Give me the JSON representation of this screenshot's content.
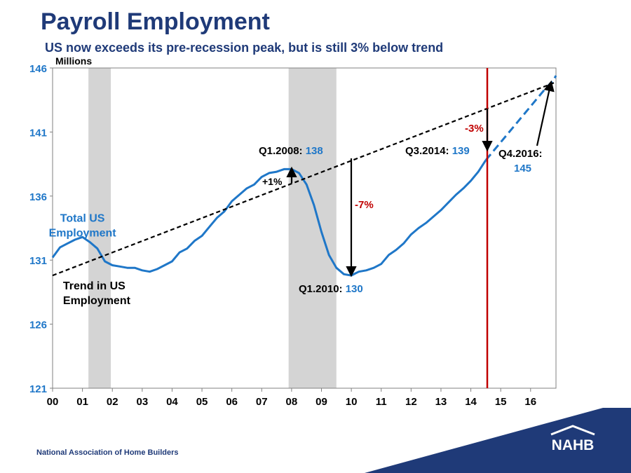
{
  "header": {
    "title": "Payroll Employment",
    "subtitle": "US now exceeds its pre-recession peak, but is still 3% below trend"
  },
  "footer": {
    "org_name": "National Association of Home Builders",
    "logo_text": "NAHB"
  },
  "colors": {
    "brand_navy": "#1f3a78",
    "series_blue": "#1f77c8",
    "recession_gray": "#d4d4d4",
    "marker_red": "#c00000",
    "trend_black": "#000000"
  },
  "chart_data": {
    "type": "line",
    "ylabel": "Millions",
    "ylim": [
      121,
      146
    ],
    "yticks": [
      "146",
      "141",
      "136",
      "131",
      "126",
      "121"
    ],
    "xticks": [
      "00",
      "01",
      "02",
      "03",
      "04",
      "05",
      "06",
      "07",
      "08",
      "09",
      "10",
      "11",
      "12",
      "13",
      "14",
      "15",
      "16"
    ],
    "xlim": [
      2000.0,
      2016.85
    ],
    "grid": false,
    "recessions": [
      [
        2001.2,
        2001.95
      ],
      [
        2007.9,
        2009.5
      ]
    ],
    "vertical_marker_x": 2014.55,
    "series": [
      {
        "name": "Total US Employment",
        "style": "solid",
        "x": [
          2000.0,
          2000.25,
          2000.5,
          2000.75,
          2001.0,
          2001.25,
          2001.5,
          2001.75,
          2002.0,
          2002.25,
          2002.5,
          2002.75,
          2003.0,
          2003.25,
          2003.5,
          2003.75,
          2004.0,
          2004.25,
          2004.5,
          2004.75,
          2005.0,
          2005.25,
          2005.5,
          2005.75,
          2006.0,
          2006.25,
          2006.5,
          2006.75,
          2007.0,
          2007.25,
          2007.5,
          2007.75,
          2008.0,
          2008.25,
          2008.5,
          2008.75,
          2009.0,
          2009.25,
          2009.5,
          2009.75,
          2010.0,
          2010.25,
          2010.5,
          2010.75,
          2011.0,
          2011.25,
          2011.5,
          2011.75,
          2012.0,
          2012.25,
          2012.5,
          2012.75,
          2013.0,
          2013.25,
          2013.5,
          2013.75,
          2014.0,
          2014.25,
          2014.5
        ],
        "y": [
          131.2,
          132.0,
          132.3,
          132.6,
          132.8,
          132.4,
          131.9,
          130.9,
          130.6,
          130.5,
          130.4,
          130.4,
          130.2,
          130.1,
          130.3,
          130.6,
          130.9,
          131.6,
          131.9,
          132.5,
          132.9,
          133.6,
          134.3,
          134.8,
          135.6,
          136.1,
          136.6,
          136.9,
          137.5,
          137.8,
          137.9,
          138.1,
          138.1,
          137.8,
          136.9,
          135.3,
          133.2,
          131.4,
          130.4,
          129.9,
          129.8,
          130.1,
          130.2,
          130.4,
          130.7,
          131.4,
          131.8,
          132.3,
          133.0,
          133.5,
          133.9,
          134.4,
          134.9,
          135.5,
          136.1,
          136.6,
          137.2,
          137.9,
          138.8
        ]
      },
      {
        "name": "",
        "style": "dashed",
        "x": [
          2014.5,
          2014.75,
          2015.0,
          2015.25,
          2015.5,
          2015.75,
          2016.0,
          2016.25,
          2016.5,
          2016.75,
          2016.85
        ],
        "y": [
          138.8,
          139.5,
          140.2,
          140.9,
          141.6,
          142.3,
          143.0,
          143.7,
          144.4,
          145.0,
          145.4
        ]
      },
      {
        "name": "Trend in US Employment",
        "style": "dashed",
        "x": [
          2000.0,
          2016.85
        ],
        "y": [
          129.8,
          144.9
        ]
      }
    ],
    "series_labels": [
      {
        "text": "Total US\nEmployment",
        "x": 2001.0,
        "y": 134.0,
        "color": "#1f77c8"
      },
      {
        "text": "Trend in US\nEmployment",
        "x": 2000.35,
        "y": 128.7,
        "color": "#000000"
      }
    ],
    "annotations": [
      {
        "label": "Q1.2008: ",
        "value": "138",
        "x": 2008.0,
        "y": 138.1
      },
      {
        "label": "Q1.2010: ",
        "value": "130",
        "x": 2010.0,
        "y": 129.8
      },
      {
        "label": "Q3.2014: ",
        "value": "139",
        "x": 2014.55,
        "y": 139.0
      },
      {
        "label": "Q4.2016:",
        "value": "145",
        "x": 2016.75,
        "y": 145.0
      }
    ],
    "change_labels": [
      "+1%",
      "-7%",
      "-3%"
    ]
  }
}
